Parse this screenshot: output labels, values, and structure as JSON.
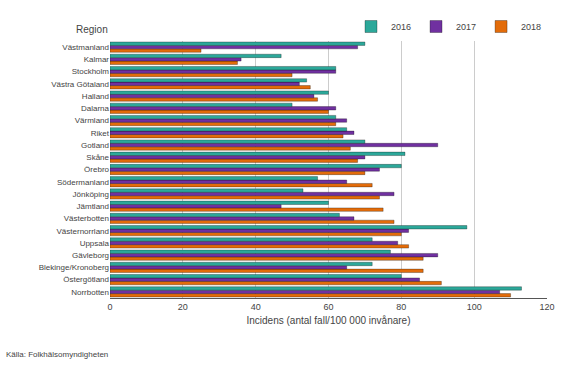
{
  "chart_data": {
    "type": "bar",
    "orientation": "horizontal",
    "xlabel": "Incidens (antal fall/100 000 invånare)",
    "ylabel": "Region",
    "annotations": [
      "Källa: Folkhälsomyndigheten"
    ],
    "categories": [
      "Norrbotten",
      "Östergötland",
      "Blekinge/Kronoberg",
      "Gävleborg",
      "Uppsala",
      "Västernorrland",
      "Västerbotten",
      "Jämtland",
      "Jönköping",
      "Södermanland",
      "Örebro",
      "Skåne",
      "Gotland",
      "Riket",
      "Värmland",
      "Dalarna",
      "Halland",
      "Västra Götaland",
      "Stockholm",
      "Kalmar",
      "Västmanland"
    ],
    "series": [
      {
        "name": "2016",
        "color": "#2ca89a",
        "values": [
          113,
          80,
          72,
          77,
          72,
          98,
          63,
          60,
          53,
          57,
          80,
          81,
          70,
          65,
          62,
          50,
          60,
          54,
          62,
          47,
          70
        ]
      },
      {
        "name": "2017",
        "color": "#7030a0",
        "values": [
          107,
          85,
          65,
          90,
          79,
          82,
          67,
          47,
          78,
          65,
          74,
          70,
          90,
          67,
          65,
          62,
          56,
          52,
          62,
          36,
          68
        ]
      },
      {
        "name": "2018",
        "color": "#e36c0a",
        "values": [
          110,
          91,
          86,
          86,
          82,
          80,
          78,
          75,
          74,
          72,
          70,
          68,
          66,
          64,
          62,
          60,
          57,
          55,
          50,
          35,
          25
        ]
      }
    ],
    "xlim": [
      0,
      120
    ],
    "xticks": [
      0,
      20,
      40,
      60,
      80,
      100,
      120
    ],
    "grid": true,
    "legend": "top"
  }
}
